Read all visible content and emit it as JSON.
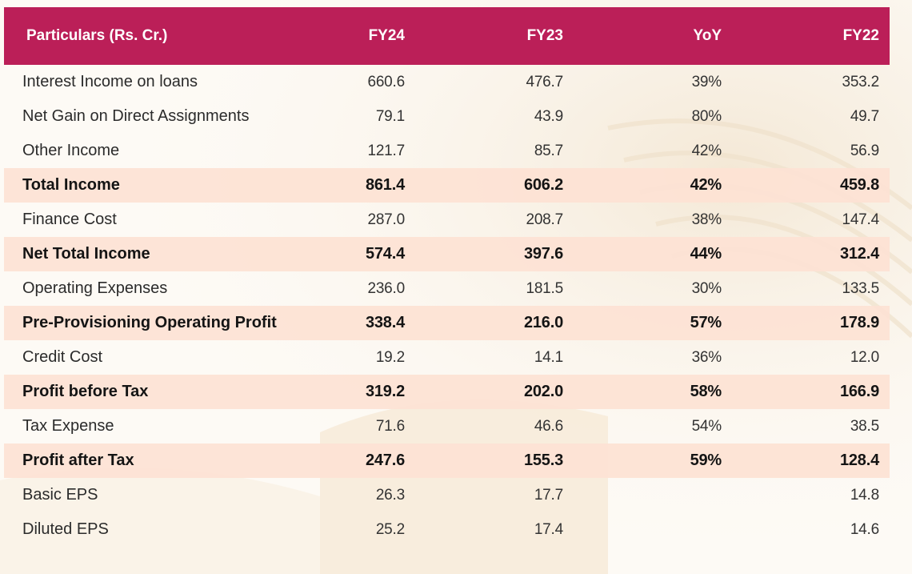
{
  "table": {
    "headers": [
      "Particulars (Rs. Cr.)",
      "FY24",
      "FY23",
      "YoY",
      "FY22"
    ],
    "rows": [
      {
        "label": "Interest Income on loans",
        "fy24": "660.6",
        "fy23": "476.7",
        "yoy": "39%",
        "fy22": "353.2",
        "bold": false
      },
      {
        "label": "Net Gain on Direct Assignments",
        "fy24": "79.1",
        "fy23": "43.9",
        "yoy": "80%",
        "fy22": "49.7",
        "bold": false
      },
      {
        "label": "Other Income",
        "fy24": "121.7",
        "fy23": "85.7",
        "yoy": "42%",
        "fy22": "56.9",
        "bold": false
      },
      {
        "label": "Total Income",
        "fy24": "861.4",
        "fy23": "606.2",
        "yoy": "42%",
        "fy22": "459.8",
        "bold": true
      },
      {
        "label": "Finance Cost",
        "fy24": "287.0",
        "fy23": "208.7",
        "yoy": "38%",
        "fy22": "147.4",
        "bold": false
      },
      {
        "label": "Net Total Income",
        "fy24": "574.4",
        "fy23": "397.6",
        "yoy": "44%",
        "fy22": "312.4",
        "bold": true
      },
      {
        "label": "Operating Expenses",
        "fy24": "236.0",
        "fy23": "181.5",
        "yoy": "30%",
        "fy22": "133.5",
        "bold": false
      },
      {
        "label": "Pre-Provisioning Operating Profit",
        "fy24": "338.4",
        "fy23": "216.0",
        "yoy": "57%",
        "fy22": "178.9",
        "bold": true
      },
      {
        "label": "Credit Cost",
        "fy24": "19.2",
        "fy23": "14.1",
        "yoy": "36%",
        "fy22": "12.0",
        "bold": false
      },
      {
        "label": "Profit before Tax",
        "fy24": "319.2",
        "fy23": "202.0",
        "yoy": "58%",
        "fy22": "166.9",
        "bold": true
      },
      {
        "label": "Tax Expense",
        "fy24": "71.6",
        "fy23": "46.6",
        "yoy": "54%",
        "fy22": "38.5",
        "bold": false
      },
      {
        "label": "Profit after Tax",
        "fy24": "247.6",
        "fy23": "155.3",
        "yoy": "59%",
        "fy22": "128.4",
        "bold": true
      },
      {
        "label": "Basic EPS",
        "fy24": "26.3",
        "fy23": "17.7",
        "yoy": "",
        "fy22": "14.8",
        "bold": false
      },
      {
        "label": "Diluted EPS",
        "fy24": "25.2",
        "fy23": "17.4",
        "yoy": "",
        "fy22": "14.6",
        "bold": false
      }
    ]
  },
  "colors": {
    "header_bg": "#bb1f58",
    "highlight_row": "#fde2d4",
    "background": "#fdfaf5"
  }
}
